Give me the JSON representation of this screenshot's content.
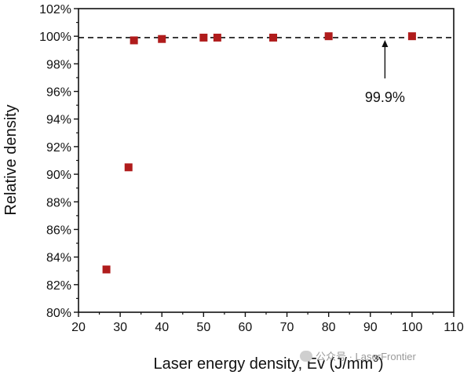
{
  "chart_data": {
    "type": "scatter",
    "title": "",
    "xlabel": "Laser energy density, Ev (J/mm",
    "xlabel_superscript": "3",
    "xlabel_tail": ")",
    "ylabel": "Relative density",
    "xlim": [
      20,
      110
    ],
    "ylim": [
      80,
      102
    ],
    "x_ticks": [
      20,
      30,
      40,
      50,
      60,
      70,
      80,
      90,
      100,
      110
    ],
    "y_ticks": [
      80,
      82,
      84,
      86,
      88,
      90,
      92,
      94,
      96,
      98,
      100,
      102
    ],
    "y_tick_format": "percent",
    "grid": false,
    "marker_color": "#b01c1c",
    "marker": "square",
    "series": [
      {
        "points": [
          {
            "x": 26.7,
            "y": 83.1
          },
          {
            "x": 32.0,
            "y": 90.5
          },
          {
            "x": 33.3,
            "y": 99.7
          },
          {
            "x": 40.0,
            "y": 99.8
          },
          {
            "x": 50.0,
            "y": 99.9
          },
          {
            "x": 53.3,
            "y": 99.9
          },
          {
            "x": 66.7,
            "y": 99.9
          },
          {
            "x": 80.0,
            "y": 100.0
          },
          {
            "x": 100.0,
            "y": 100.0
          }
        ]
      }
    ],
    "reference_line": {
      "y": 99.9,
      "style": "dashed",
      "color": "#111111"
    },
    "annotation": {
      "text": "99.9%",
      "arrow_x": 93.5
    }
  },
  "watermark": {
    "text": "公众号 · LaserFrontier"
  }
}
